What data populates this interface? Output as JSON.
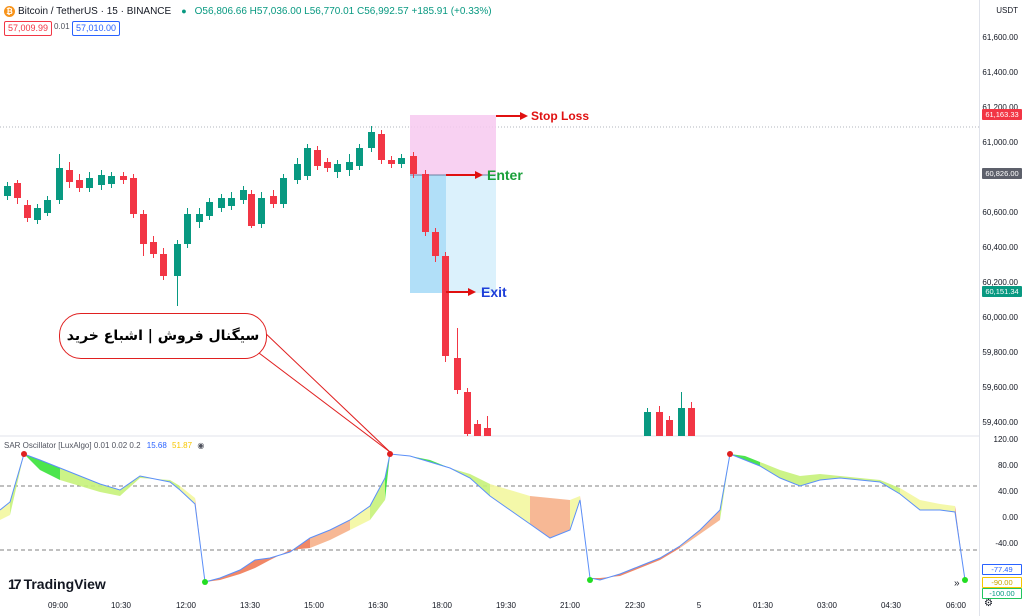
{
  "symbol": {
    "title": "Bitcoin / TetherUS · 15 · BINANCE",
    "ohlc": "O56,806.66 H57,036.00 L56,770.01 C56,992.57 +185.91 (+0.33%)",
    "sell_price": "57,009.99",
    "spread": "0.01",
    "buy_price": "57,010.00",
    "currency": "USDT"
  },
  "price_axis": [
    "61,600.00",
    "61,400.00",
    "61,200.00",
    "61,000.00",
    "60,600.00",
    "60,400.00",
    "60,200.00",
    "60,000.00",
    "59,800.00",
    "59,600.00",
    "59,400.00"
  ],
  "price_tags": {
    "stop": "61,163.33",
    "enter": "60,826.00",
    "exit": "60,151.34"
  },
  "osc_axis": [
    "120.00",
    "80.00",
    "40.00",
    "0.00",
    "-40.00",
    "-100.00"
  ],
  "osc_tags": {
    "blue": "-77.49",
    "yellow": "-90.00",
    "green": "-100.00"
  },
  "time_axis": [
    "09:00",
    "10:30",
    "12:00",
    "13:30",
    "15:00",
    "16:30",
    "18:00",
    "19:30",
    "21:00",
    "22:30",
    "5",
    "01:30",
    "03:00",
    "04:30",
    "06:00"
  ],
  "oscillator": {
    "name": "SAR Oscillator [LuxAlgo]",
    "params": "0.01 0.02 0.2",
    "value_blue": "15.68",
    "value_yellow": "51.87",
    "eye_icon": "eye-icon"
  },
  "annotations": {
    "stop_loss": "Stop Loss",
    "enter": "Enter",
    "exit": "Exit",
    "callout": "سیگنال فروش | اشباع خرید"
  },
  "branding": "TradingView",
  "colors": {
    "up": "#089981",
    "down": "#f23645",
    "stop_zone": "#f7c9f0",
    "target_zone": "#bfe6fb",
    "annotation_red": "#e01010",
    "enter_green": "#1a9f3a",
    "exit_blue": "#1e3fd9"
  }
}
